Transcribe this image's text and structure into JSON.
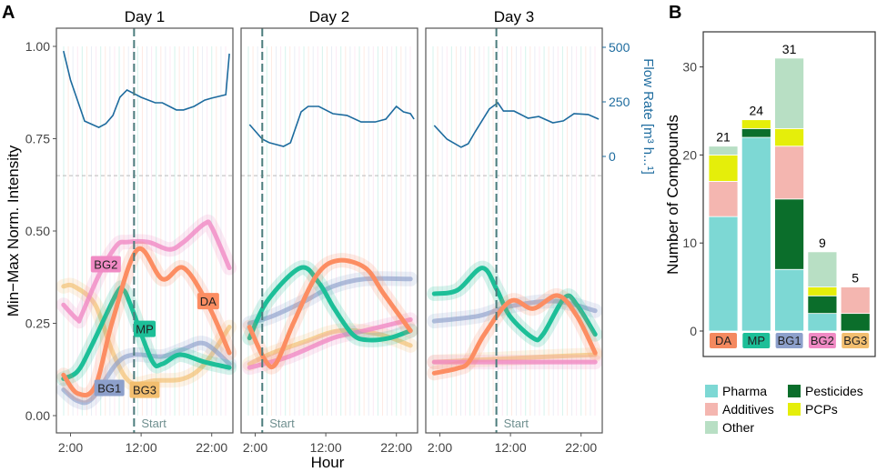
{
  "panel_labels": {
    "a": "A",
    "b": "B"
  },
  "chart_data": [
    {
      "type": "line",
      "facets": [
        "Day 1",
        "Day 2",
        "Day 3"
      ],
      "xlabel": "Hour",
      "ylabel": "Min−Max Norm. Intensity",
      "y2label": "Flow Rate [m³ h...¹]",
      "xticks": [
        {
          "value": 2,
          "label": "2:00"
        },
        {
          "value": 12,
          "label": "12:00"
        },
        {
          "value": 22,
          "label": "22:00"
        }
      ],
      "yticks": [
        "0.00",
        "0.25",
        "0.50",
        "0.75",
        "1.00"
      ],
      "y2ticks": [
        "0",
        "250",
        "500"
      ],
      "xlim": [
        0,
        25
      ],
      "ylim": [
        -0.05,
        1.05
      ],
      "y2lim_mapped_to_intensity": {
        "0": 0.702,
        "500": 1.0
      },
      "threshold_line": 0.65,
      "start_label": "Start",
      "start_hours": [
        11,
        3,
        10
      ],
      "grid": false,
      "colors": {
        "DA": "#fc8d62",
        "MP": "#1dbf98",
        "BG1": "#8da0cb",
        "BG2": "#f08ac4",
        "BG3": "#f2be6f",
        "flow": "#1d6b9e",
        "start": "#4c7d7d"
      },
      "series_labels": [
        "DA",
        "MP",
        "BG1",
        "BG2",
        "BG3"
      ],
      "flow": [
        {
          "x": [
            1,
            2,
            4,
            6,
            7,
            8,
            9,
            10,
            11,
            12,
            14,
            15,
            17,
            18,
            19.5,
            21,
            22,
            24,
            24.5
          ],
          "y": [
            483,
            350,
            162,
            133,
            150,
            188,
            271,
            304,
            288,
            271,
            246,
            246,
            213,
            213,
            229,
            258,
            267,
            283,
            471
          ]
        },
        {
          "x": [
            1.2,
            3,
            4,
            6,
            7,
            8.5,
            9.5,
            11,
            13,
            15,
            17,
            19,
            20.5,
            22,
            23,
            24,
            24.5
          ],
          "y": [
            146,
            79,
            63,
            46,
            63,
            204,
            229,
            229,
            196,
            188,
            158,
            158,
            171,
            229,
            204,
            196,
            171
          ]
        },
        {
          "x": [
            1.2,
            3,
            5,
            6,
            7,
            9,
            10.2,
            11,
            12.5,
            14.5,
            16,
            18,
            19.5,
            21,
            23,
            24.5
          ],
          "y": [
            142,
            79,
            42,
            58,
            113,
            217,
            246,
            208,
            208,
            175,
            183,
            154,
            163,
            196,
            192,
            171
          ]
        }
      ],
      "series": [
        {
          "name": "DA",
          "days": [
            {
              "x": [
                1,
                3,
                5.5,
                8,
                11.5,
                15,
                18,
                21.5,
                24.5
              ],
              "y": [
                0.11,
                0.06,
                0.08,
                0.26,
                0.45,
                0.37,
                0.4,
                0.3,
                0.17
              ]
            },
            {
              "x": [
                1.2,
                3.4,
                4.9,
                7.4,
                10.7,
                13.7,
                17.6,
                20.2,
                24
              ],
              "y": [
                0.24,
                0.15,
                0.14,
                0.25,
                0.38,
                0.42,
                0.4,
                0.33,
                0.23
              ]
            },
            {
              "x": [
                1.2,
                4.5,
                6.1,
                8.3,
                12,
                15.2,
                18.7,
                21.4,
                24
              ],
              "y": [
                0.115,
                0.128,
                0.145,
                0.22,
                0.31,
                0.29,
                0.325,
                0.27,
                0.17
              ]
            }
          ]
        },
        {
          "name": "MP",
          "days": [
            {
              "x": [
                1,
                3,
                5,
                8.5,
                9.5,
                10.5,
                13.5,
                15,
                17.5,
                21,
                24.5
              ],
              "y": [
                0.1,
                0.12,
                0.19,
                0.33,
                0.34,
                0.3,
                0.15,
                0.14,
                0.165,
                0.145,
                0.13
              ]
            },
            {
              "x": [
                1.2,
                3.7,
                8.4,
                11,
                13.2,
                15.8,
                17.9,
                21,
                24
              ],
              "y": [
                0.21,
                0.31,
                0.4,
                0.36,
                0.29,
                0.22,
                0.205,
                0.21,
                0.23
              ]
            },
            {
              "x": [
                1.2,
                4.5,
                8,
                10.1,
                11.9,
                15.2,
                16.6,
                19.7,
                21.4,
                24
              ],
              "y": [
                0.33,
                0.34,
                0.4,
                0.34,
                0.27,
                0.21,
                0.22,
                0.32,
                0.3,
                0.22
              ]
            }
          ]
        },
        {
          "name": "BG1",
          "days": [
            {
              "x": [
                1,
                3,
                5,
                8.5,
                11,
                15,
                18,
                21,
                24.5
              ],
              "y": [
                0.07,
                0.04,
                0.045,
                0.14,
                0.165,
                0.16,
                0.18,
                0.195,
                0.14
              ]
            },
            {
              "x": [
                1.2,
                4.5,
                9,
                13,
                17.5,
                24
              ],
              "y": [
                0.25,
                0.27,
                0.31,
                0.35,
                0.37,
                0.37
              ]
            },
            {
              "x": [
                1.2,
                7.5,
                11.9,
                18.4,
                24
              ],
              "y": [
                0.256,
                0.27,
                0.296,
                0.31,
                0.284
              ]
            }
          ]
        },
        {
          "name": "BG2",
          "days": [
            {
              "x": [
                1,
                3,
                3.5,
                6,
                8.5,
                10,
                13,
                16,
                18,
                21,
                22,
                24.5
              ],
              "y": [
                0.3,
                0.26,
                0.27,
                0.38,
                0.46,
                0.47,
                0.47,
                0.45,
                0.47,
                0.52,
                0.51,
                0.4
              ]
            },
            {
              "x": [
                1.2,
                6.8,
                13,
                17.5,
                24
              ],
              "y": [
                0.13,
                0.16,
                0.21,
                0.23,
                0.26
              ]
            },
            {
              "x": [
                1.2,
                12,
                24
              ],
              "y": [
                0.145,
                0.145,
                0.145
              ]
            }
          ]
        },
        {
          "name": "BG3",
          "days": [
            {
              "x": [
                1,
                2.5,
                5.5,
                8,
                10.5,
                14,
                18,
                21,
                24.5
              ],
              "y": [
                0.35,
                0.35,
                0.3,
                0.17,
                0.09,
                0.095,
                0.1,
                0.14,
                0.24
              ]
            },
            {
              "x": [
                1.2,
                4.5,
                9,
                14,
                19.6,
                24
              ],
              "y": [
                0.14,
                0.17,
                0.2,
                0.23,
                0.22,
                0.19
              ]
            },
            {
              "x": [
                1.2,
                12,
                24
              ],
              "y": [
                0.145,
                0.155,
                0.165
              ]
            }
          ]
        }
      ]
    },
    {
      "type": "bar",
      "stacked": true,
      "ylabel": "Number of Compounds",
      "xlabel": "",
      "ylim": [
        -2,
        33
      ],
      "yticks": [
        "0",
        "10",
        "20",
        "30"
      ],
      "categories": [
        "DA",
        "MP",
        "BG1",
        "BG2",
        "BG3"
      ],
      "category_colors": [
        "#f4895f",
        "#1dbf98",
        "#8da0cb",
        "#f08ac4",
        "#f2be6f"
      ],
      "totals": [
        "21",
        "24",
        "31",
        "9",
        "5"
      ],
      "series": [
        {
          "name": "Pharma",
          "color": "#7dd8d4",
          "values": [
            13,
            22,
            7,
            2,
            0
          ]
        },
        {
          "name": "Pesticides",
          "color": "#0b6e2b",
          "values": [
            0,
            1,
            8,
            2,
            2
          ]
        },
        {
          "name": "Additives",
          "color": "#f4b6b0",
          "values": [
            4,
            0,
            6,
            0,
            3
          ]
        },
        {
          "name": "PCPs",
          "color": "#e5ee0a",
          "values": [
            3,
            1,
            2,
            1,
            0
          ]
        },
        {
          "name": "Other",
          "color": "#b8dfc4",
          "values": [
            1,
            0,
            8,
            4,
            0
          ]
        }
      ],
      "legend": [
        "Pharma",
        "Pesticides",
        "Additives",
        "PCPs",
        "Other"
      ],
      "legend_position": "bottom"
    }
  ]
}
